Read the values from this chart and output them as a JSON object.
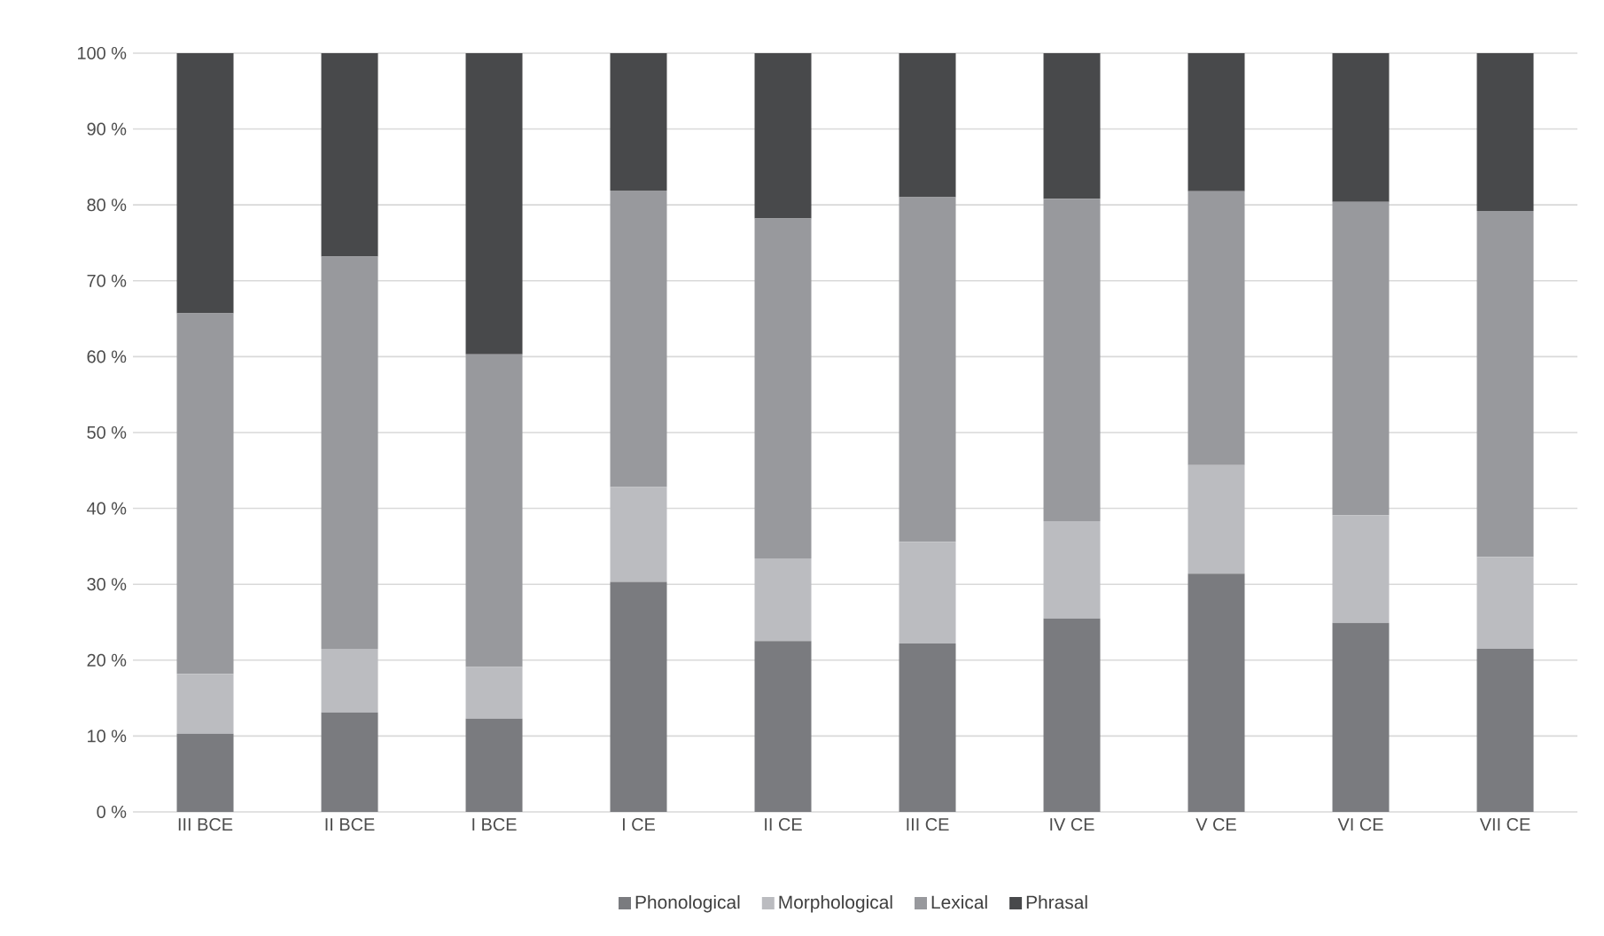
{
  "chart_data": {
    "type": "bar",
    "stacked": true,
    "categories": [
      "III BCE",
      "II BCE",
      "I BCE",
      "I CE",
      "II CE",
      "III CE",
      "IV CE",
      "V CE",
      "VI CE",
      "VII CE"
    ],
    "series": [
      {
        "name": "Phonological",
        "color": "#7a7b7f",
        "values": [
          10.3,
          13.1,
          12.3,
          30.3,
          22.5,
          22.2,
          25.5,
          31.4,
          24.9,
          21.5
        ]
      },
      {
        "name": "Morphological",
        "color": "#bbbcc0",
        "values": [
          7.9,
          8.4,
          6.8,
          12.5,
          10.9,
          13.4,
          12.8,
          14.3,
          14.2,
          12.1
        ]
      },
      {
        "name": "Lexical",
        "color": "#98999d",
        "values": [
          47.5,
          51.7,
          41.2,
          39.1,
          44.8,
          45.4,
          42.5,
          36.1,
          41.3,
          45.6
        ]
      },
      {
        "name": "Phrasal",
        "color": "#48494b",
        "values": [
          34.3,
          26.8,
          39.7,
          18.1,
          21.8,
          19.0,
          19.2,
          18.2,
          19.6,
          20.8
        ]
      }
    ],
    "ylim": [
      0,
      100
    ],
    "yticks": [
      {
        "value": 0,
        "label": "0 %"
      },
      {
        "value": 10,
        "label": "10 %"
      },
      {
        "value": 20,
        "label": "20 %"
      },
      {
        "value": 30,
        "label": "30 %"
      },
      {
        "value": 40,
        "label": "40 %"
      },
      {
        "value": 50,
        "label": "50 %"
      },
      {
        "value": 60,
        "label": "60 %"
      },
      {
        "value": 70,
        "label": "70 %"
      },
      {
        "value": 80,
        "label": "80 %"
      },
      {
        "value": 90,
        "label": "90 %"
      },
      {
        "value": 100,
        "label": "100 %"
      }
    ],
    "grid": "y",
    "legend": "bottom"
  }
}
